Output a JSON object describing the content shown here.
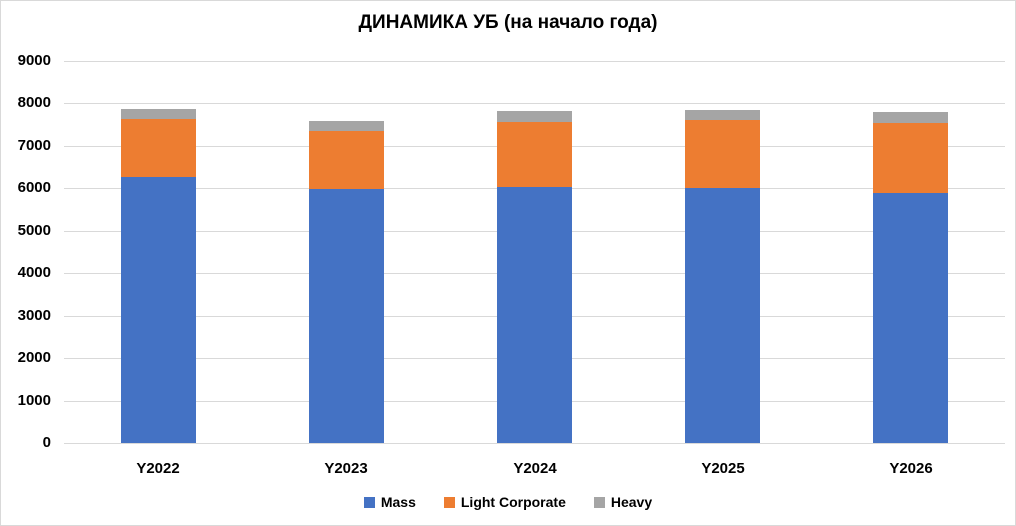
{
  "title": "ДИНАМИКА УБ (на начало года)",
  "chart_data": {
    "type": "bar",
    "stacked": true,
    "title": "ДИНАМИКА УБ (на начало года)",
    "categories": [
      "Y2022",
      "Y2023",
      "Y2024",
      "Y2025",
      "Y2026"
    ],
    "series": [
      {
        "name": "Mass",
        "color": "#4472C4",
        "values": [
          6270,
          5980,
          6040,
          6000,
          5890
        ]
      },
      {
        "name": "Light Corporate",
        "color": "#ED7D31",
        "values": [
          1360,
          1380,
          1530,
          1600,
          1640
        ]
      },
      {
        "name": "Heavy",
        "color": "#A5A5A5",
        "values": [
          230,
          220,
          250,
          240,
          270
        ]
      }
    ],
    "totals": [
      7860,
      7580,
      7820,
      7840,
      7800
    ],
    "xlabel": "",
    "ylabel": "",
    "ylim": [
      0,
      9000
    ],
    "ytick_interval": 1000,
    "yticks": [
      "0",
      "1000",
      "2000",
      "3000",
      "4000",
      "5000",
      "6000",
      "7000",
      "8000",
      "9000"
    ],
    "grid": true,
    "gridline_color": "#D9D9D9",
    "axis_line_color": "#D9D9D9",
    "text_color": "#000000",
    "legend_position": "bottom",
    "legend": [
      "Mass",
      "Light Corporate",
      "Heavy"
    ]
  }
}
